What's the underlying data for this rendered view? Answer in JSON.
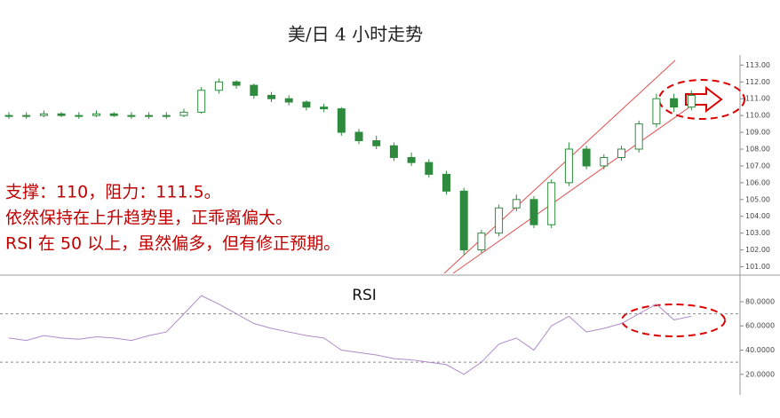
{
  "chart_data": [
    {
      "type": "candlestick",
      "title": "美/日 4 小时走势",
      "annotations": [
        "支撑：110，阻力：111.5。",
        "依然保持在上升趋势里，正乖离偏大。",
        "RSI 在 50 以上，虽然偏多，但有修正预期。"
      ],
      "color": "#2e8b3e",
      "open": [
        110.0,
        110.0,
        110.0,
        110.1,
        110.0,
        110.0,
        110.1,
        110.0,
        110.0,
        110.0,
        110.0,
        110.2,
        111.5,
        112.0,
        111.8,
        111.2,
        111.0,
        110.8,
        110.5,
        110.4,
        109.0,
        108.5,
        108.2,
        107.5,
        107.2,
        106.5,
        105.5,
        102.0,
        103.0,
        104.5,
        105.0,
        103.5,
        106.0,
        108.0,
        107.0,
        107.5,
        108.0,
        109.5,
        111.0,
        110.5
      ],
      "high": [
        110.2,
        110.2,
        110.3,
        110.2,
        110.2,
        110.3,
        110.2,
        110.2,
        110.2,
        110.2,
        110.4,
        111.7,
        112.2,
        112.1,
        111.9,
        111.4,
        111.2,
        110.9,
        110.7,
        110.5,
        109.2,
        108.8,
        108.4,
        107.8,
        107.4,
        106.7,
        105.7,
        103.2,
        104.7,
        105.3,
        105.2,
        106.2,
        108.4,
        108.2,
        107.7,
        108.2,
        109.7,
        111.3,
        111.3,
        111.5
      ],
      "low": [
        109.8,
        109.8,
        109.9,
        109.9,
        109.8,
        109.9,
        109.9,
        109.8,
        109.8,
        109.8,
        109.9,
        110.1,
        111.3,
        111.6,
        111.0,
        110.8,
        110.6,
        110.3,
        110.2,
        108.8,
        108.3,
        108.0,
        107.3,
        107.0,
        106.3,
        105.3,
        101.7,
        101.8,
        102.8,
        104.3,
        103.3,
        103.3,
        105.8,
        106.8,
        106.8,
        107.3,
        107.8,
        109.3,
        110.2,
        110.3
      ],
      "close": [
        110.0,
        110.0,
        110.1,
        110.0,
        110.0,
        110.1,
        110.0,
        110.0,
        110.0,
        110.0,
        110.2,
        111.5,
        112.0,
        111.8,
        111.2,
        111.0,
        110.8,
        110.5,
        110.4,
        109.0,
        108.5,
        108.2,
        107.5,
        107.2,
        106.5,
        105.5,
        102.0,
        103.0,
        104.5,
        105.0,
        103.5,
        106.0,
        108.0,
        107.0,
        107.5,
        108.0,
        109.5,
        111.0,
        110.5,
        111.2
      ],
      "ylim": [
        100.5,
        113.6
      ],
      "yticks": [
        {
          "value": 101,
          "label": "101.00"
        },
        {
          "value": 102,
          "label": "102.00"
        },
        {
          "value": 103,
          "label": "103.00"
        },
        {
          "value": 104,
          "label": "104.00"
        },
        {
          "value": 105,
          "label": "105.00"
        },
        {
          "value": 106,
          "label": "106.00"
        },
        {
          "value": 107,
          "label": "107.00"
        },
        {
          "value": 108,
          "label": "108.00"
        },
        {
          "value": 109,
          "label": "109.00"
        },
        {
          "value": 110,
          "label": "110.00"
        },
        {
          "value": 111,
          "label": "111.00"
        },
        {
          "value": 112,
          "label": "112.00"
        },
        {
          "value": 113,
          "label": "113.00"
        }
      ]
    },
    {
      "type": "line",
      "title": "RSI",
      "color": "#b08ac8",
      "values": [
        50,
        48,
        52,
        50,
        49,
        51,
        50,
        48,
        52,
        55,
        70,
        85,
        78,
        70,
        62,
        58,
        55,
        52,
        50,
        40,
        38,
        36,
        33,
        32,
        30,
        28,
        20,
        30,
        45,
        50,
        40,
        60,
        68,
        55,
        58,
        62,
        70,
        78,
        65,
        68
      ],
      "ylim": [
        3,
        100.5
      ],
      "yticks": [
        {
          "value": 20,
          "label": "20.0000"
        },
        {
          "value": 40,
          "label": "40.0000"
        },
        {
          "value": 60,
          "label": "60.0000"
        },
        {
          "value": 80,
          "label": "80.0000"
        }
      ],
      "hlines": [
        70,
        30
      ]
    }
  ]
}
